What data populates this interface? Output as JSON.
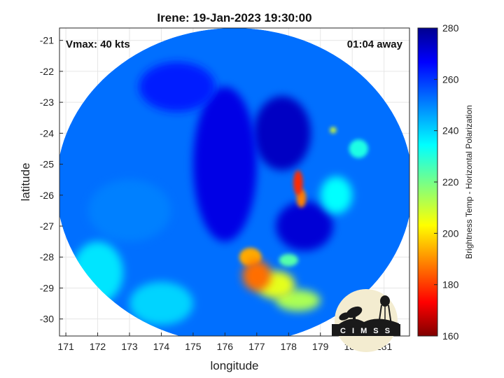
{
  "chart_data": {
    "type": "heatmap",
    "title": "Irene: 19-Jan-2023 19:30:00",
    "xlabel": "longitude",
    "ylabel": "latitude",
    "xlim": [
      170.8,
      181.8
    ],
    "ylim": [
      -30.55,
      -20.6
    ],
    "x_ticks": [
      171,
      172,
      173,
      174,
      175,
      176,
      177,
      178,
      179,
      180,
      181
    ],
    "y_ticks": [
      -21,
      -22,
      -23,
      -24,
      -25,
      -26,
      -27,
      -28,
      -29,
      -30
    ],
    "annotations": {
      "vmax": "Vmax: 40 kts",
      "time_offset": "01:04 away"
    },
    "colorbar": {
      "label": "Brightness Temp - Horizontal Polarization",
      "range": [
        160,
        280
      ],
      "ticks": [
        160,
        180,
        200,
        220,
        240,
        260,
        280
      ],
      "colormap": "jet"
    },
    "swath": {
      "center_lon": 176.3,
      "center_lat": -25.7,
      "radius_lon": 5.6,
      "radius_lat": 5.1
    },
    "features": [
      {
        "lon": 177.0,
        "lat": -28.6,
        "r_lon": 0.45,
        "r_lat": 0.5,
        "temp": 188
      },
      {
        "lon": 176.8,
        "lat": -28.0,
        "r_lon": 0.35,
        "r_lat": 0.3,
        "temp": 195
      },
      {
        "lon": 177.6,
        "lat": -28.9,
        "r_lon": 0.6,
        "r_lat": 0.45,
        "temp": 208
      },
      {
        "lon": 178.3,
        "lat": -29.4,
        "r_lon": 0.7,
        "r_lat": 0.35,
        "temp": 215
      },
      {
        "lon": 178.3,
        "lat": -25.6,
        "r_lon": 0.15,
        "r_lat": 0.4,
        "temp": 180
      },
      {
        "lon": 178.4,
        "lat": -26.1,
        "r_lon": 0.15,
        "r_lat": 0.3,
        "temp": 190
      },
      {
        "lon": 179.4,
        "lat": -23.9,
        "r_lon": 0.1,
        "r_lat": 0.1,
        "temp": 210
      },
      {
        "lon": 178.0,
        "lat": -28.1,
        "r_lon": 0.3,
        "r_lat": 0.2,
        "temp": 225
      },
      {
        "lon": 179.5,
        "lat": -26.0,
        "r_lon": 0.5,
        "r_lat": 0.6,
        "temp": 235
      },
      {
        "lon": 180.2,
        "lat": -24.5,
        "r_lon": 0.3,
        "r_lat": 0.3,
        "temp": 232
      },
      {
        "lon": 176.0,
        "lat": -25.0,
        "r_lon": 1.0,
        "r_lat": 2.5,
        "temp": 268
      },
      {
        "lon": 177.8,
        "lat": -24.0,
        "r_lon": 0.9,
        "r_lat": 1.2,
        "temp": 272
      },
      {
        "lon": 178.5,
        "lat": -27.0,
        "r_lon": 0.9,
        "r_lat": 0.8,
        "temp": 270
      },
      {
        "lon": 174.5,
        "lat": -22.5,
        "r_lon": 1.2,
        "r_lat": 0.8,
        "temp": 262
      },
      {
        "lon": 173.0,
        "lat": -26.5,
        "r_lon": 1.3,
        "r_lat": 1.0,
        "temp": 250
      },
      {
        "lon": 172.0,
        "lat": -28.5,
        "r_lon": 0.8,
        "r_lat": 1.0,
        "temp": 238
      },
      {
        "lon": 174.0,
        "lat": -29.5,
        "r_lon": 1.0,
        "r_lat": 0.7,
        "temp": 240
      }
    ]
  },
  "logo": {
    "text": "C I M S S"
  },
  "colors": {
    "background": "#ffffff",
    "axis": "#262626",
    "grid": "#e6e6e6"
  }
}
